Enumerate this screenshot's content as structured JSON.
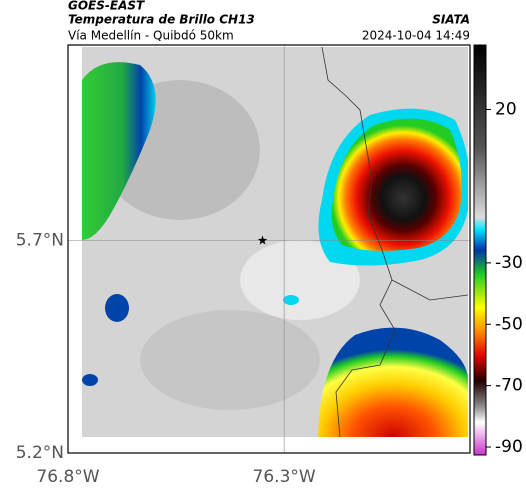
{
  "header": {
    "satellite": "GOES-EAST",
    "product": "Temperatura de Brillo CH13",
    "agency": "SIATA",
    "route": "Vía Medellín - Quibdó 50km",
    "timestamp": "2024-10-04 14:49"
  },
  "map": {
    "latlim": [
      5.2,
      6.16
    ],
    "lonlim": [
      -76.8,
      -75.87
    ],
    "lat_ticks": [
      {
        "value": 5.7,
        "label": "5.7°N"
      },
      {
        "value": 5.2,
        "label": "5.2°N"
      }
    ],
    "lon_ticks": [
      {
        "value": -76.8,
        "label": "76.8°W"
      },
      {
        "value": -76.3,
        "label": "76.3°W"
      }
    ],
    "marker": {
      "lon": -76.35,
      "lat": 5.7
    }
  },
  "colorbar": {
    "lim": [
      -92.6,
      41
    ],
    "ticks": [
      20,
      -30,
      -50,
      -70,
      -90
    ]
  }
}
